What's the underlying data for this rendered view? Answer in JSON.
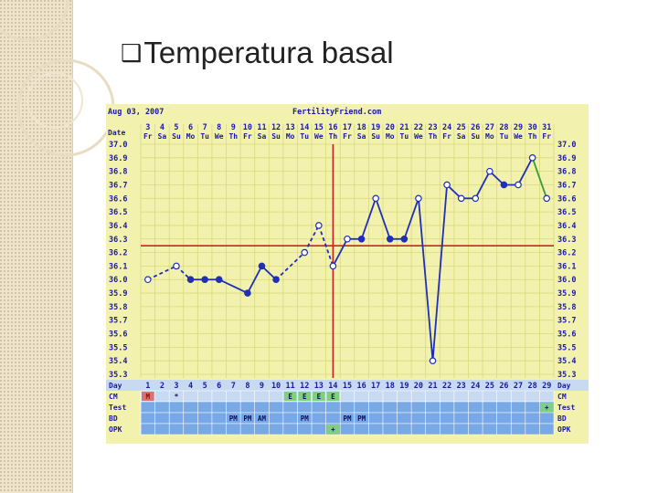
{
  "slide": {
    "bullet": "❑",
    "title": "Temperatura basal"
  },
  "colors": {
    "chart_bg": "#f2f2ae",
    "grid": "#d9d97a",
    "header_text": "#1a1aa0",
    "line": "#1f2fb8",
    "line_green": "#3a9a3a",
    "coverline": "#d42020",
    "ovulation_line": "#c81e1e",
    "row_blue": "#78a8e6",
    "row_light": "#c8daf2",
    "cm_m": "#e07070",
    "cm_e": "#7ed07e",
    "side_bg": "#efe4cc"
  },
  "chart_data": {
    "type": "line",
    "date_label": "Aug 03, 2007",
    "site": "FertilityFriend.com",
    "row_date": "Date",
    "row_day": "Day",
    "dates": [
      "3",
      "4",
      "5",
      "6",
      "7",
      "8",
      "9",
      "10",
      "11",
      "12",
      "13",
      "14",
      "15",
      "16",
      "17",
      "18",
      "19",
      "20",
      "21",
      "22",
      "23",
      "24",
      "25",
      "26",
      "27",
      "28",
      "29",
      "30",
      "31"
    ],
    "weekdays": [
      "Fr",
      "Sa",
      "Su",
      "Mo",
      "Tu",
      "We",
      "Th",
      "Fr",
      "Sa",
      "Su",
      "Mo",
      "Tu",
      "We",
      "Th",
      "Fr",
      "Sa",
      "Su",
      "Mo",
      "Tu",
      "We",
      "Th",
      "Fr",
      "Sa",
      "Su",
      "Mo",
      "Tu",
      "We",
      "Th",
      "Fr"
    ],
    "days": [
      "1",
      "2",
      "3",
      "4",
      "5",
      "6",
      "7",
      "8",
      "9",
      "10",
      "11",
      "12",
      "13",
      "14",
      "15",
      "16",
      "17",
      "18",
      "19",
      "20",
      "21",
      "22",
      "23",
      "24",
      "25",
      "26",
      "27",
      "28",
      "29"
    ],
    "y_ticks": [
      "37.0",
      "36.9",
      "36.8",
      "36.7",
      "36.6",
      "36.5",
      "36.4",
      "36.3",
      "36.2",
      "36.1",
      "36.0",
      "35.9",
      "35.8",
      "35.7",
      "35.6",
      "35.5",
      "35.4",
      "35.3"
    ],
    "y_ticks_right": [
      "37.0",
      "36.9",
      "36.8",
      "36.7",
      "36.6",
      "36.5",
      "36.4",
      "36.3",
      "36.2",
      "36.1",
      "36.0",
      "35.9",
      "35.8",
      "35.7",
      "35.6",
      "35.5",
      "35.4",
      "35.3"
    ],
    "ylim": [
      35.3,
      37.0
    ],
    "temps": [
      36.0,
      null,
      36.1,
      36.0,
      36.0,
      36.0,
      null,
      35.9,
      36.1,
      36.0,
      null,
      36.2,
      36.4,
      36.1,
      36.3,
      36.3,
      36.6,
      36.3,
      36.3,
      36.6,
      35.4,
      36.7,
      36.6,
      36.6,
      36.8,
      36.7,
      36.7,
      36.9,
      36.6
    ],
    "open_markers": [
      true,
      null,
      true,
      false,
      false,
      false,
      null,
      false,
      false,
      false,
      null,
      true,
      true,
      true,
      true,
      false,
      true,
      false,
      false,
      true,
      true,
      true,
      true,
      true,
      true,
      false,
      true,
      true,
      true
    ],
    "dashed_segments": [
      [
        1,
        3
      ],
      [
        3,
        4
      ],
      [
        10,
        12
      ],
      [
        12,
        13
      ],
      [
        13,
        14
      ]
    ],
    "green_segment": [
      28,
      29
    ],
    "coverline_temp": 36.25,
    "ovulation_day": 14,
    "rows": [
      {
        "label": "CM",
        "label_right": "CM",
        "style": "light",
        "cells": {
          "1": "M",
          "3": "*",
          "11": "E",
          "12": "E",
          "13": "E",
          "14": "E"
        }
      },
      {
        "label": "Test",
        "label_right": "Test",
        "style": "blue",
        "cells": {
          "29": "+"
        }
      },
      {
        "label": "BD",
        "label_right": "BD",
        "style": "blue",
        "cells": {
          "7": "PM",
          "8": "PM",
          "9": "AM",
          "12": "PM",
          "15": "PM",
          "16": "PM"
        }
      },
      {
        "label": "OPK",
        "label_right": "OPK",
        "style": "blue",
        "cells": {
          "14": "+"
        }
      }
    ]
  }
}
